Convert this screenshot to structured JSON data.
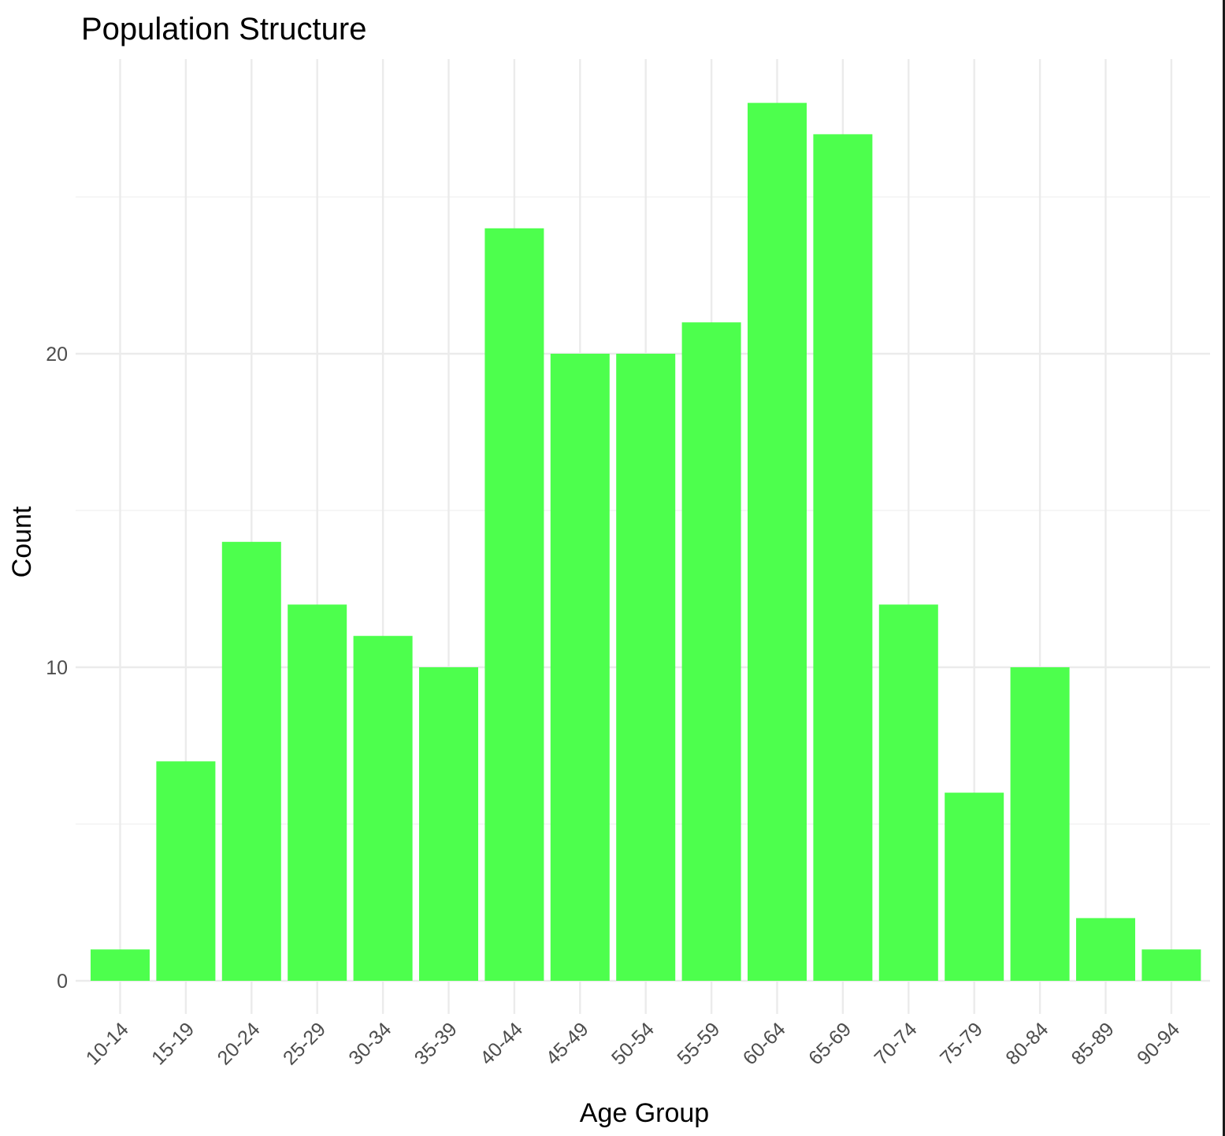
{
  "chart_data": {
    "type": "bar",
    "title": "Population Structure",
    "xlabel": "Age Group",
    "ylabel": "Count",
    "categories": [
      "10-14",
      "15-19",
      "20-24",
      "25-29",
      "30-34",
      "35-39",
      "40-44",
      "45-49",
      "50-54",
      "55-59",
      "60-64",
      "65-69",
      "70-74",
      "75-79",
      "80-84",
      "85-89",
      "90-94"
    ],
    "values": [
      1,
      7,
      14,
      12,
      11,
      10,
      24,
      20,
      20,
      21,
      28,
      27,
      12,
      6,
      10,
      2,
      1
    ],
    "ylim": [
      0,
      29.5
    ],
    "yticks": [
      0,
      10,
      20
    ],
    "ytick_labels": [
      "0",
      "10",
      "20"
    ],
    "grid": true,
    "legend": "none",
    "bar_color": "#4dff4d"
  }
}
